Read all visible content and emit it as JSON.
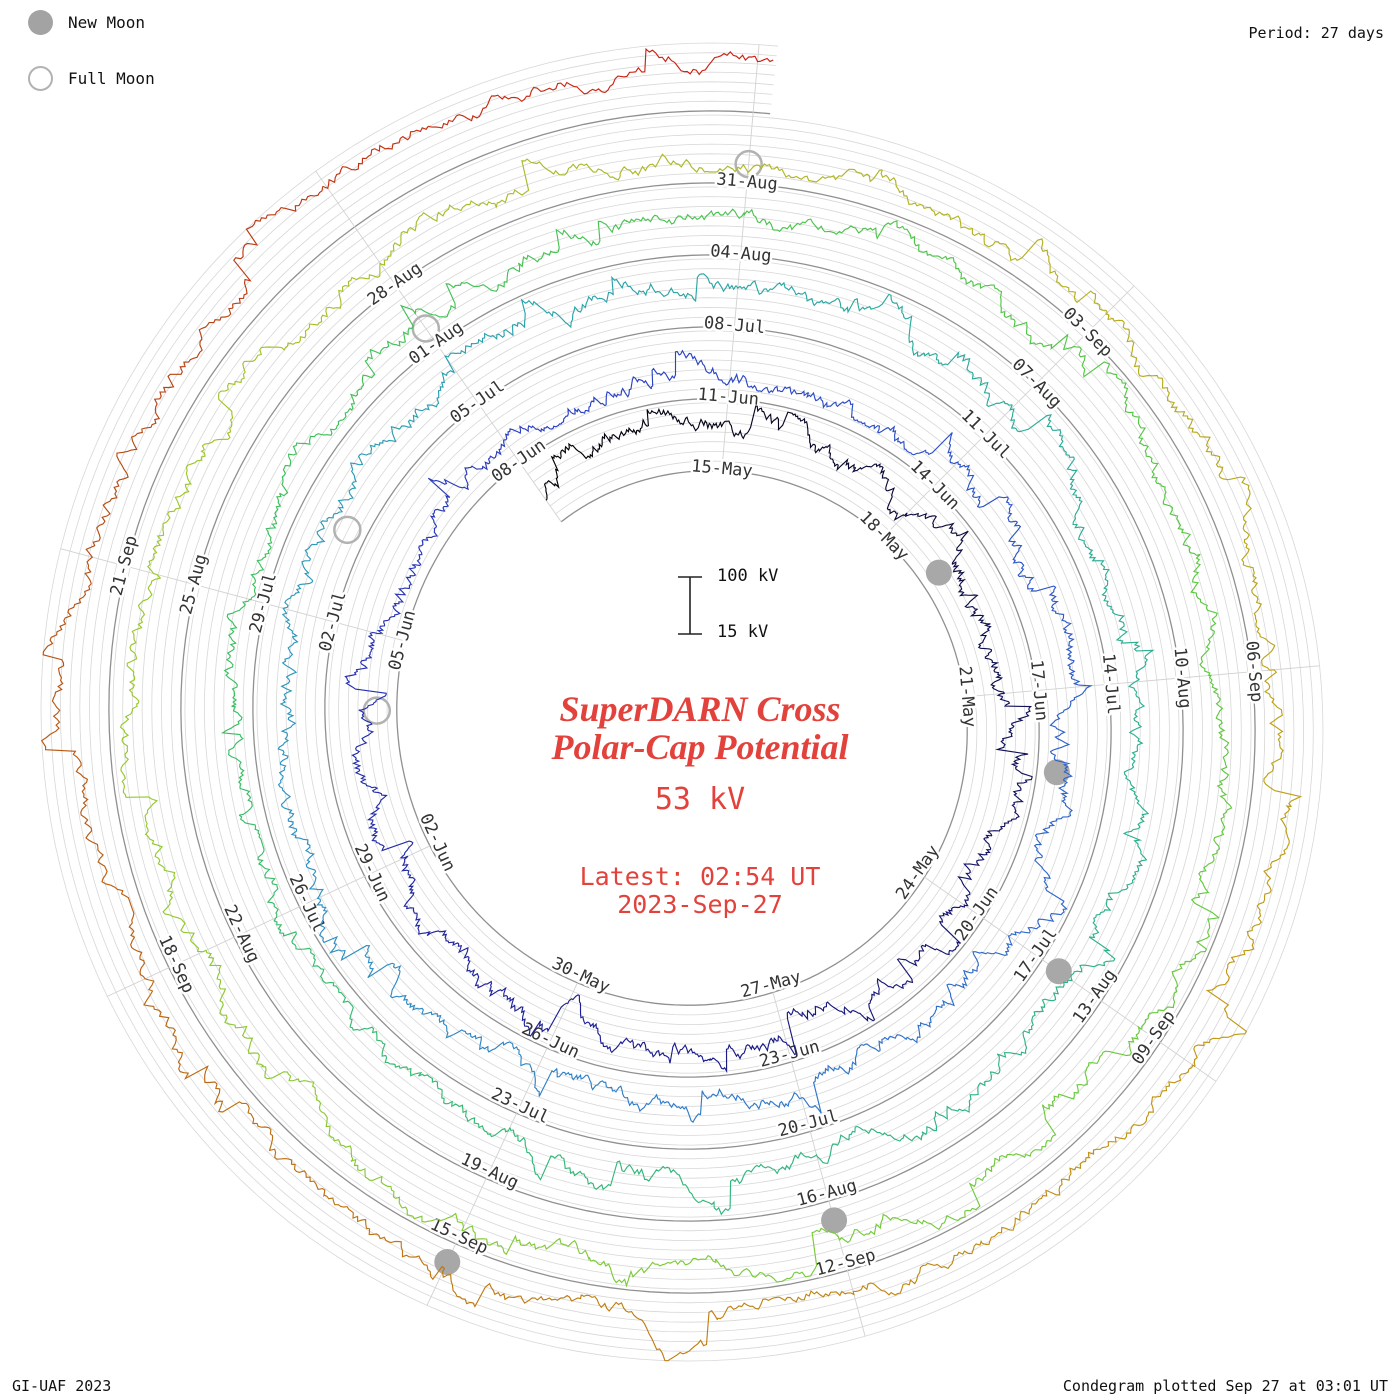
{
  "header": {
    "period": "Period: 27 days"
  },
  "legend": {
    "new_moon_label": "New Moon",
    "full_moon_label": "Full Moon"
  },
  "center": {
    "title_line1": "SuperDARN Cross",
    "title_line2": "Polar-Cap Potential",
    "current_value": "53 kV",
    "latest_time": "Latest: 02:54 UT",
    "latest_date": "2023-Sep-27"
  },
  "scale": {
    "top": "100 kV",
    "bottom": "15 kV"
  },
  "footer": {
    "left": "GI-UAF 2023",
    "right": "Condegram plotted Sep 27 at 03:01 UT"
  },
  "chart_data": {
    "type": "line",
    "variant": "condegram_spiral",
    "title": "SuperDARN Cross Polar-Cap Potential",
    "units": "kV",
    "period_days": 27,
    "latest_value_kv": 53,
    "latest_timestamp": "2023-Sep-27 02:54 UT",
    "plotted_note": "Condegram plotted Sep 27 at 03:01 UT",
    "scale_ticks_kv": [
      15,
      100
    ],
    "grid_levels_kv": [
      15,
      30,
      45,
      60,
      75,
      90,
      105
    ],
    "series_value_range_kv": [
      17,
      105
    ],
    "label_interval_days": 3,
    "date_labels": [
      "15-May",
      "18-May",
      "21-May",
      "24-May",
      "27-May",
      "30-May",
      "02-Jun",
      "05-Jun",
      "08-Jun",
      "11-Jun",
      "14-Jun",
      "17-Jun",
      "20-Jun",
      "23-Jun",
      "26-Jun",
      "29-Jun",
      "02-Jul",
      "05-Jul",
      "08-Jul",
      "11-Jul",
      "14-Jul",
      "17-Jul",
      "20-Jul",
      "23-Jul",
      "26-Jul",
      "29-Jul",
      "01-Aug",
      "04-Aug",
      "07-Aug",
      "10-Aug",
      "13-Aug",
      "16-Aug",
      "19-Aug",
      "22-Aug",
      "25-Aug",
      "28-Aug",
      "31-Aug",
      "03-Sep",
      "06-Sep",
      "09-Sep",
      "12-Sep",
      "15-Sep",
      "18-Sep",
      "21-Sep"
    ],
    "new_moon_dates": [
      "19-May",
      "18-Jun",
      "17-Jul",
      "16-Aug",
      "15-Sep"
    ],
    "full_moon_dates": [
      "04-Jun",
      "03-Jul",
      "01-Aug",
      "31-Aug"
    ],
    "color_stops": [
      [
        0.0,
        "#000000"
      ],
      [
        0.05,
        "#0d0d45"
      ],
      [
        0.12,
        "#1c1c8f"
      ],
      [
        0.2,
        "#2a3ec4"
      ],
      [
        0.28,
        "#2f68cc"
      ],
      [
        0.35,
        "#2f92c4"
      ],
      [
        0.42,
        "#2aa9a2"
      ],
      [
        0.49,
        "#2fb484"
      ],
      [
        0.56,
        "#3abf62"
      ],
      [
        0.63,
        "#52c546"
      ],
      [
        0.7,
        "#78cb38"
      ],
      [
        0.76,
        "#9cc82c"
      ],
      [
        0.82,
        "#b5b120"
      ],
      [
        0.87,
        "#c29514"
      ],
      [
        0.92,
        "#bf7210"
      ],
      [
        0.96,
        "#b54a14"
      ],
      [
        1.0,
        "#cd1d12"
      ]
    ],
    "accent_color": "#e2423b"
  }
}
